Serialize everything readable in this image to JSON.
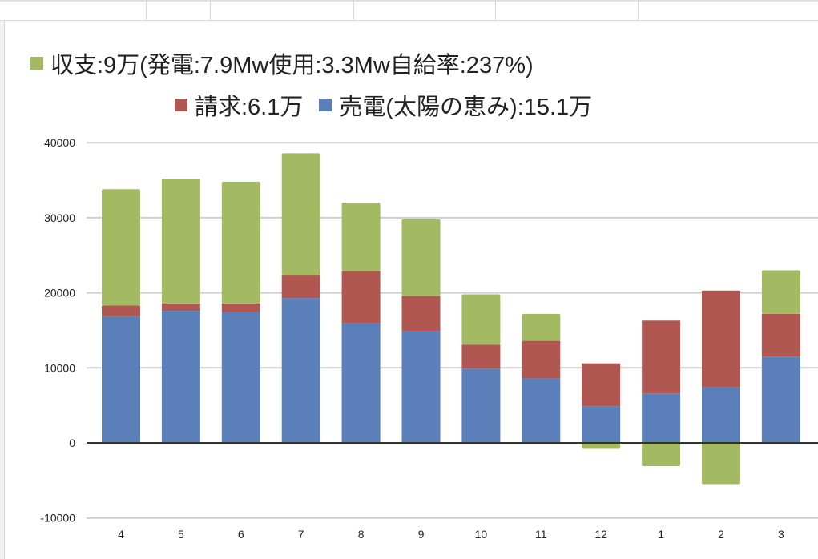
{
  "chart_data": {
    "type": "bar",
    "stacked": true,
    "title": "",
    "xlabel": "",
    "ylabel": "",
    "ylim": [
      -10000,
      40000
    ],
    "yticks": [
      -10000,
      0,
      10000,
      20000,
      30000,
      40000
    ],
    "grid": true,
    "legend_position": "top",
    "categories": [
      "4",
      "5",
      "6",
      "7",
      "8",
      "9",
      "10",
      "11",
      "12",
      "1",
      "2",
      "3"
    ],
    "series": [
      {
        "name": "売電(太陽の恵み):15.1万",
        "color": "#5b7fb8",
        "values": [
          16900,
          17600,
          17400,
          19300,
          16000,
          14900,
          9900,
          8600,
          4900,
          6600,
          7400,
          11500
        ]
      },
      {
        "name": "請求:6.1万",
        "color": "#b05752",
        "values": [
          1400,
          1000,
          1200,
          3000,
          6900,
          4700,
          3200,
          5000,
          5700,
          9700,
          12900,
          5700
        ]
      },
      {
        "name": "収支:9万(発電:7.9Mw使用:3.3Mw自給率:237%)",
        "color": "#a3ba63",
        "values": [
          15500,
          16600,
          16200,
          16300,
          9100,
          10200,
          6700,
          3600,
          -800,
          -3100,
          -5500,
          5800
        ]
      }
    ]
  }
}
